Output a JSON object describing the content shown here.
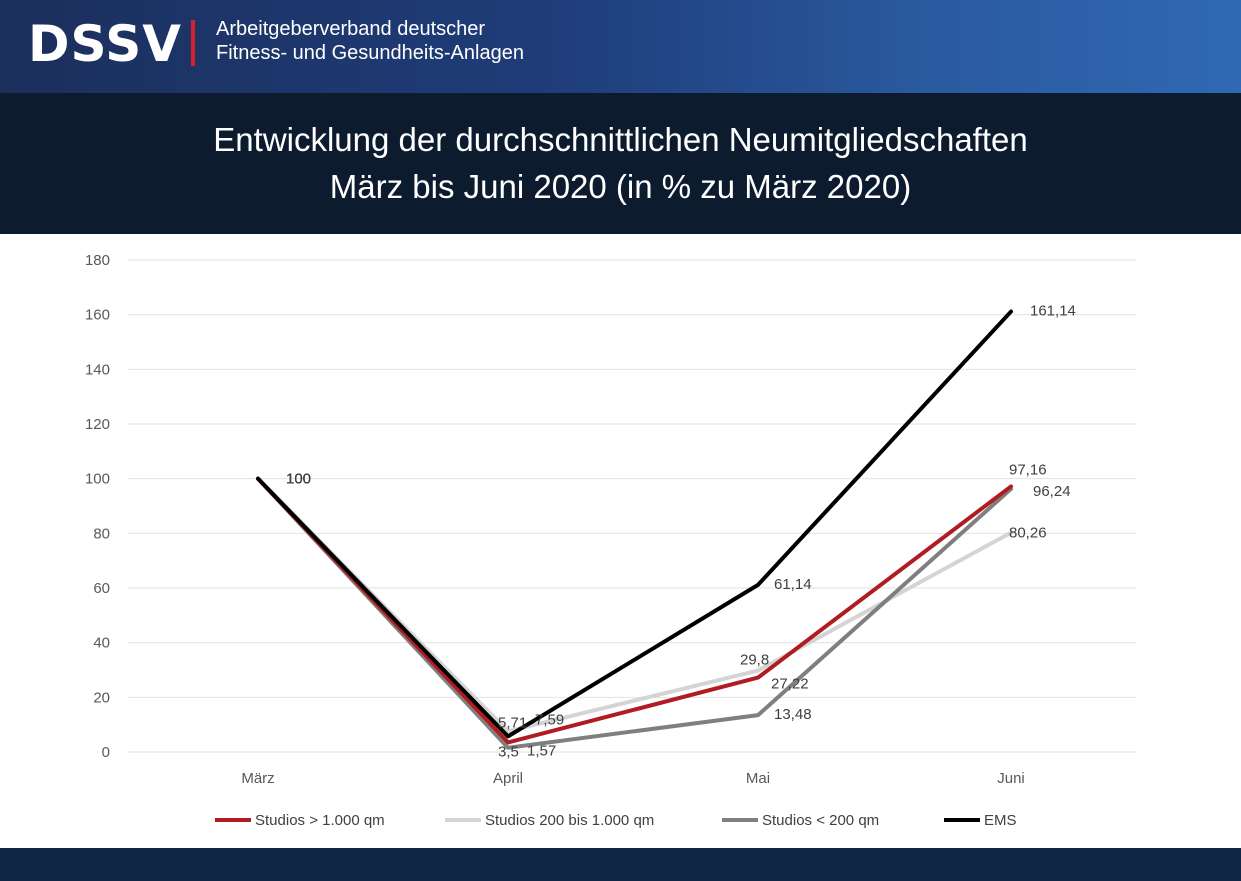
{
  "header": {
    "logo": "DSSV",
    "org_line1": "Arbeitgeberverband deutscher",
    "org_line2": "Fitness- und Gesundheits-Anlagen",
    "brand_color": "#1f3d7a",
    "accent_color": "#d2232a"
  },
  "chart_data": {
    "type": "line",
    "title": "Entwicklung der durchschnittlichen Neumitgliedschaften",
    "subtitle": "März bis Juni 2020 (in % zu März 2020)",
    "categories": [
      "März",
      "April",
      "Mai",
      "Juni"
    ],
    "ylim": [
      0,
      180
    ],
    "yticks": [
      0,
      20,
      40,
      60,
      80,
      100,
      120,
      140,
      160,
      180
    ],
    "grid": true,
    "legend_position": "bottom",
    "series": [
      {
        "name": "Studios > 1.000 qm",
        "color": "#b01c22",
        "values": [
          100,
          3.5,
          27.22,
          97.16
        ],
        "labels": [
          "100",
          "3,5",
          "27,22",
          "97,16"
        ]
      },
      {
        "name": "Studios 200 bis 1.000 qm",
        "color": "#d4d4d4",
        "values": [
          100,
          7.59,
          29.8,
          80.26
        ],
        "labels": [
          "100",
          "7,59",
          "29,8",
          "80,26"
        ]
      },
      {
        "name": "Studios < 200 qm",
        "color": "#7f7f7f",
        "values": [
          100,
          1.57,
          13.48,
          96.24
        ],
        "labels": [
          "100",
          "1,57",
          "13,48",
          "96,24"
        ]
      },
      {
        "name": "EMS",
        "color": "#000000",
        "values": [
          100,
          5.71,
          61.14,
          161.14
        ],
        "labels": [
          "100",
          "5,71",
          "61,14",
          "161,14"
        ]
      }
    ]
  }
}
